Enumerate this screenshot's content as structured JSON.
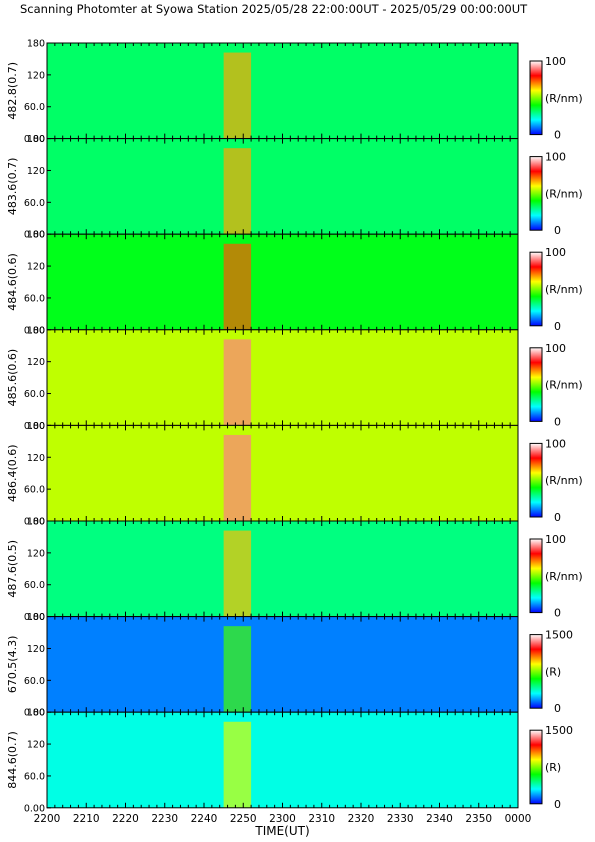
{
  "chart_data": {
    "type": "heatmap",
    "title": "Scanning Photomter at Syowa Station  2025/05/28 22:00:00UT - 2025/05/29 00:00:00UT",
    "xlabel": "TIME(UT)",
    "x_ticks": [
      "2200",
      "2210",
      "2220",
      "2230",
      "2240",
      "2250",
      "2300",
      "2310",
      "2320",
      "2330",
      "2340",
      "2350",
      "0000"
    ],
    "x_range_min": [
      0,
      120
    ],
    "y_ticks": [
      "0.00",
      "60.0",
      "120",
      "180"
    ],
    "y_range": [
      0,
      180
    ],
    "colormap": [
      "#0000ff",
      "#00ffff",
      "#00ff00",
      "#ffff00",
      "#ff0000",
      "#ffffff"
    ],
    "panels": [
      {
        "label": "482.8(0.7)",
        "unit": "(R/nm)",
        "cmax": "100",
        "cmin": "0",
        "level": 0.32
      },
      {
        "label": "483.6(0.7)",
        "unit": "(R/nm)",
        "cmax": "100",
        "cmin": "0",
        "level": 0.32
      },
      {
        "label": "484.6(0.6)",
        "unit": "(R/nm)",
        "cmax": "100",
        "cmin": "0",
        "level": 0.38
      },
      {
        "label": "485.6(0.6)",
        "unit": "(R/nm)",
        "cmax": "100",
        "cmin": "0",
        "level": 0.55
      },
      {
        "label": "486.4(0.6)",
        "unit": "(R/nm)",
        "cmax": "100",
        "cmin": "0",
        "level": 0.55
      },
      {
        "label": "487.6(0.5)",
        "unit": "(R/nm)",
        "cmax": "100",
        "cmin": "0",
        "level": 0.3
      },
      {
        "label": "670.5(4.3)",
        "unit": "(R)",
        "cmax": "1500",
        "cmin": "0",
        "level": 0.1
      },
      {
        "label": "844.6(0.7)",
        "unit": "(R)",
        "cmax": "1500",
        "cmin": "0",
        "level": 0.22
      }
    ]
  }
}
